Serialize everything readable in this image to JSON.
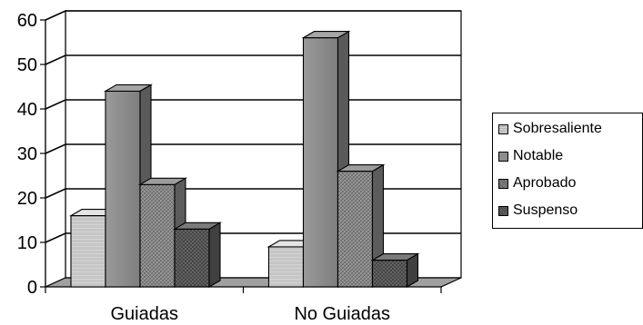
{
  "chart_data": {
    "type": "bar",
    "categories": [
      "Guiadas",
      "No Guiadas"
    ],
    "series": [
      {
        "name": "Sobresaliente",
        "values": [
          16,
          9
        ]
      },
      {
        "name": "Notable",
        "values": [
          44,
          56
        ]
      },
      {
        "name": "Aprobado",
        "values": [
          23,
          26
        ]
      },
      {
        "name": "Suspenso",
        "values": [
          13,
          6
        ]
      }
    ],
    "ylim": [
      0,
      60
    ],
    "yticks": [
      "0",
      "10",
      "20",
      "30",
      "40",
      "50",
      "60"
    ],
    "grid": true,
    "legend": "right",
    "title": "",
    "xlabel": "",
    "ylabel": ""
  },
  "colors": {
    "Sobresaliente": "#c8c8c8",
    "Notable": "#8e8e8e",
    "Aprobado": "#7a7a7a",
    "Suspenso": "#5e5e5e"
  }
}
